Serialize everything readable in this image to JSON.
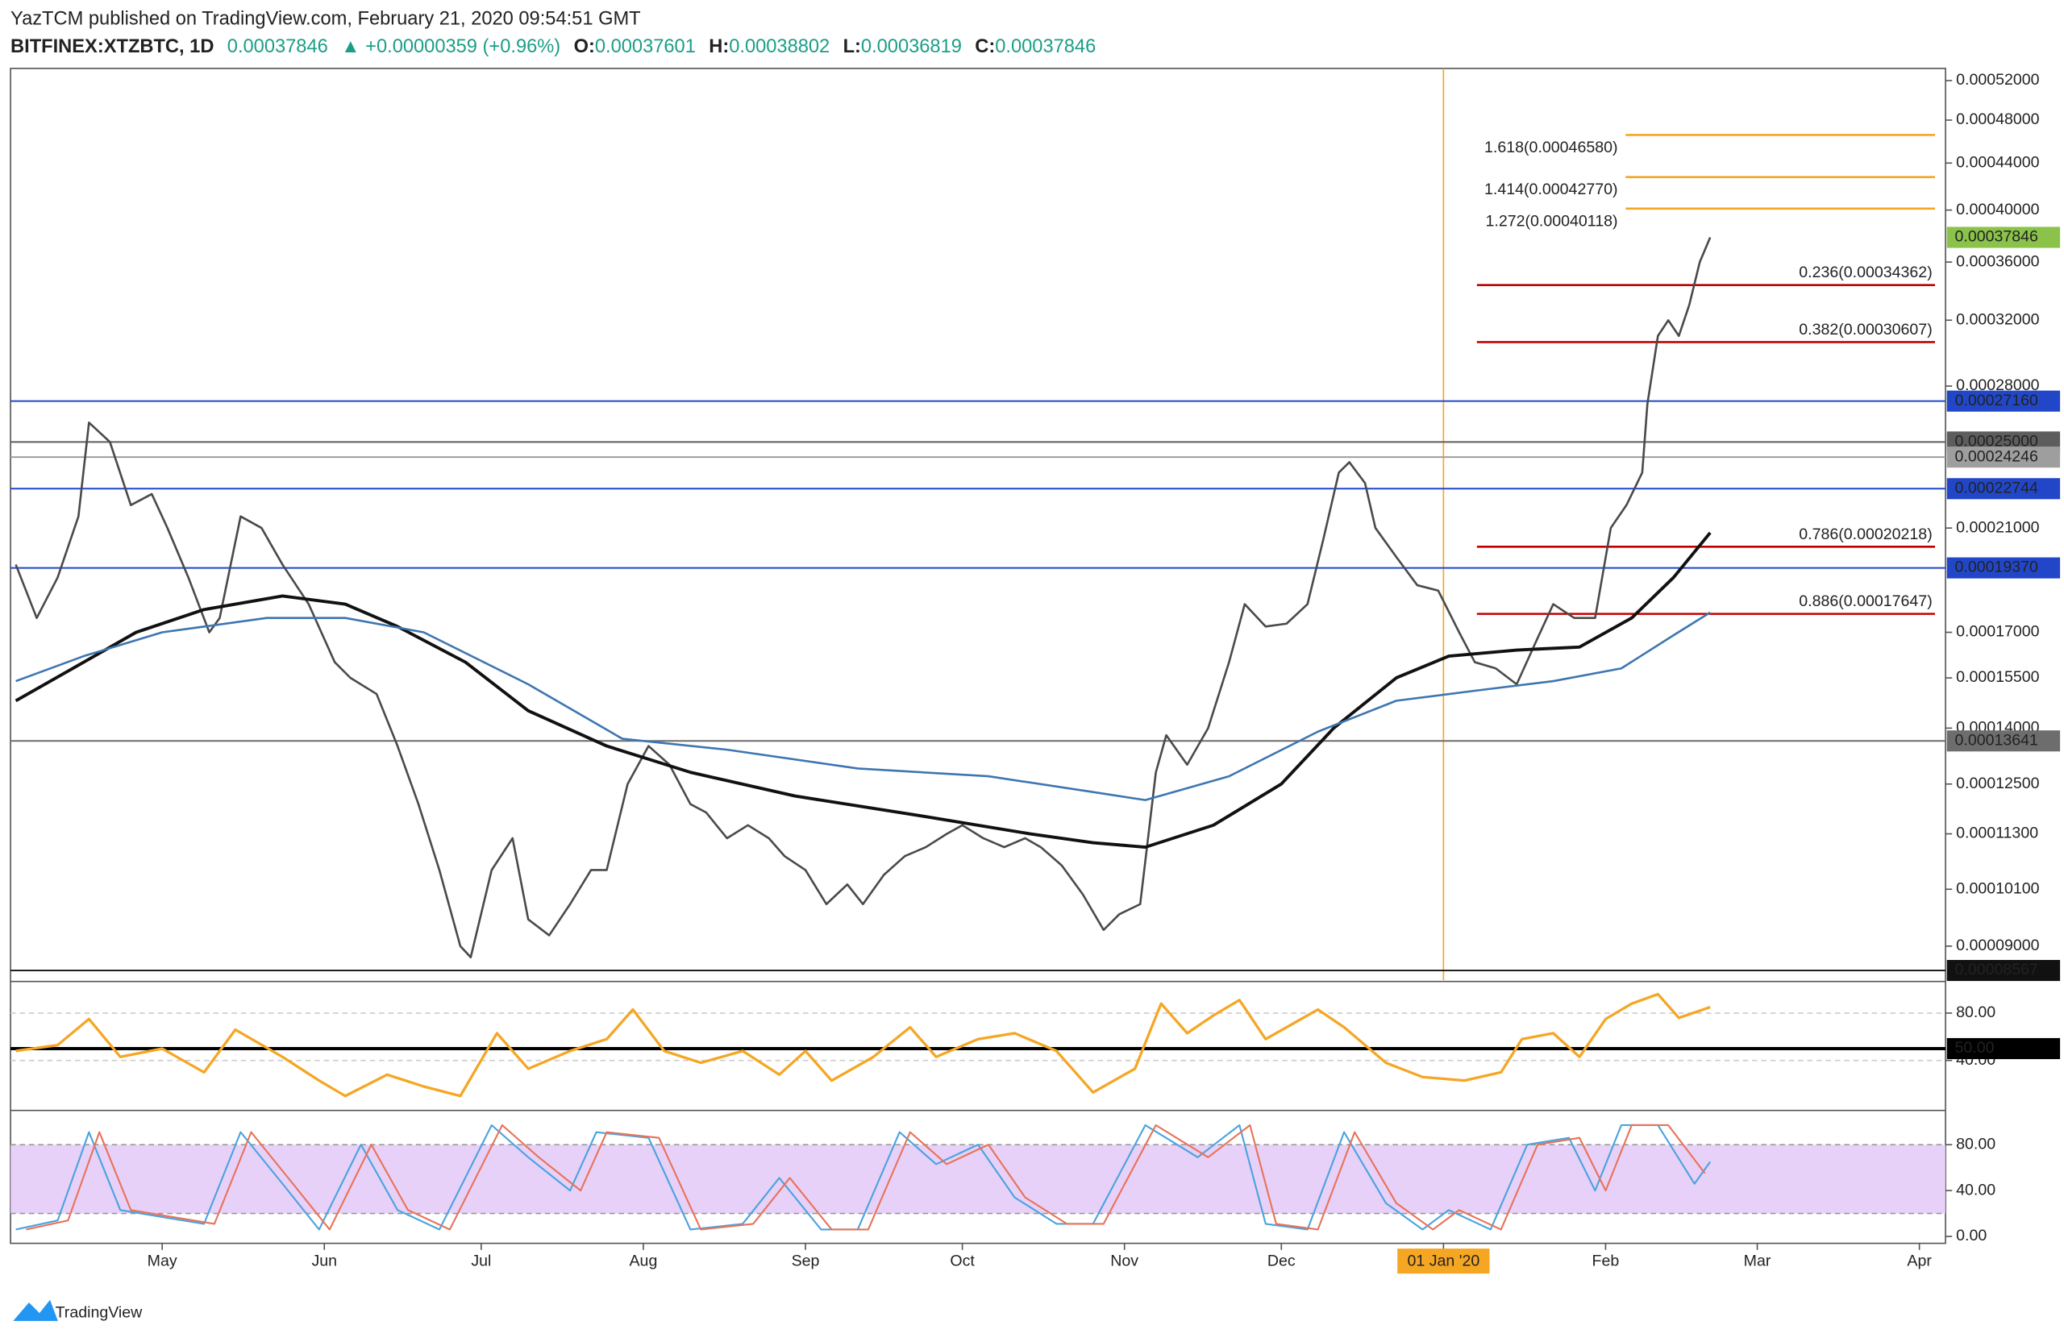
{
  "header": {
    "author_line": "YazTCM published on TradingView.com, February 21, 2020 09:54:51 GMT",
    "symbol": "BITFINEX:XTZBTC, 1D",
    "last": "0.00037846",
    "change": "▲ +0.00000359 (+0.96%)",
    "ohlc": [
      [
        "O:",
        "0.00037601"
      ],
      [
        "H:",
        "0.00038802"
      ],
      [
        "L:",
        "0.00036819"
      ],
      [
        "C:",
        "0.00037846"
      ]
    ]
  },
  "footer": {
    "logo": "TradingView"
  },
  "chart_data": [
    {
      "type": "line",
      "log": true,
      "xlim": [
        -274,
        96
      ],
      "ylim": [
        8.4e-05,
        0.000533
      ],
      "xticks": [
        {
          "value": -245,
          "label": "May"
        },
        {
          "value": -214,
          "label": "Jun"
        },
        {
          "value": -184,
          "label": "Jul"
        },
        {
          "value": -153,
          "label": "Aug"
        },
        {
          "value": -122,
          "label": "Sep"
        },
        {
          "value": -92,
          "label": "Oct"
        },
        {
          "value": -61,
          "label": "Nov"
        },
        {
          "value": -31,
          "label": "Dec"
        },
        {
          "value": 0,
          "label": "01 Jan '20"
        },
        {
          "value": 31,
          "label": "Feb"
        },
        {
          "value": 60,
          "label": "Mar"
        },
        {
          "value": 91,
          "label": "Apr"
        }
      ],
      "vline": {
        "value": 0,
        "color": "#f5a623"
      },
      "yticks": [
        {
          "value": 0.00052,
          "label": "0.00052000"
        },
        {
          "value": 0.00048,
          "label": "0.00048000"
        },
        {
          "value": 0.00044,
          "label": "0.00044000"
        },
        {
          "value": 0.0004,
          "label": "0.00040000"
        },
        {
          "value": 0.00036,
          "label": "0.00036000"
        },
        {
          "value": 0.00032,
          "label": "0.00032000"
        },
        {
          "value": 0.00028,
          "label": "0.00028000"
        },
        {
          "value": 0.00021,
          "label": "0.00021000"
        },
        {
          "value": 0.00017,
          "label": "0.00017000"
        },
        {
          "value": 0.000155,
          "label": "0.00015500"
        },
        {
          "value": 0.00014,
          "label": "0.00014000"
        },
        {
          "value": 0.000125,
          "label": "0.00012500"
        },
        {
          "value": 0.000113,
          "label": "0.00011300"
        },
        {
          "value": 0.000101,
          "label": "0.00010100"
        },
        {
          "value": 9e-05,
          "label": "0.00009000"
        }
      ],
      "series": [
        {
          "color": "#4a4a4a",
          "width": 1.6,
          "x": [
            -273,
            -269,
            -265,
            -261,
            -259,
            -255,
            -251,
            -247,
            -244,
            -240,
            -236,
            -234,
            -230,
            -226,
            -222,
            -217,
            -212,
            -209,
            -204,
            -200,
            -196,
            -192,
            -188,
            -186,
            -182,
            -178,
            -175,
            -171,
            -167,
            -163,
            -160,
            -156,
            -152,
            -148,
            -144,
            -141,
            -137,
            -133,
            -129,
            -126,
            -122,
            -118,
            -114,
            -111,
            -107,
            -103,
            -99,
            -95,
            -92,
            -88,
            -84,
            -80,
            -77,
            -73,
            -69,
            -65,
            -62,
            -58,
            -55,
            -53,
            -49,
            -45,
            -41,
            -38,
            -34,
            -30,
            -26,
            -23,
            -20,
            -18,
            -15,
            -13,
            -9,
            -5,
            -1,
            3,
            6,
            10,
            14,
            18,
            21,
            25,
            29,
            32,
            35,
            38,
            39,
            41,
            43,
            45,
            47,
            49,
            51
          ],
          "values": [
            0.000195,
            0.000175,
            0.00019,
            0.000215,
            0.00026,
            0.00025,
            0.00022,
            0.000225,
            0.00021,
            0.00019,
            0.00017,
            0.000175,
            0.000215,
            0.00021,
            0.000195,
            0.00018,
            0.00016,
            0.000155,
            0.00015,
            0.000135,
            0.00012,
            0.000105,
            9e-05,
            8.8e-05,
            0.000105,
            0.000112,
            9.5e-05,
            9.2e-05,
            9.8e-05,
            0.000105,
            0.000105,
            0.000125,
            0.000135,
            0.00013,
            0.00012,
            0.000118,
            0.000112,
            0.000115,
            0.000112,
            0.000108,
            0.000105,
            9.8e-05,
            0.000102,
            9.8e-05,
            0.000104,
            0.000108,
            0.00011,
            0.000113,
            0.000115,
            0.000112,
            0.00011,
            0.000112,
            0.00011,
            0.000106,
            0.0001,
            9.3e-05,
            9.6e-05,
            9.8e-05,
            0.000128,
            0.000138,
            0.00013,
            0.00014,
            0.00016,
            0.00018,
            0.000172,
            0.000173,
            0.00018,
            0.000205,
            0.000235,
            0.00024,
            0.00023,
            0.00021,
            0.000198,
            0.000187,
            0.000185,
            0.00017,
            0.00016,
            0.000158,
            0.000153,
            0.000168,
            0.00018,
            0.000175,
            0.000175,
            0.00021,
            0.00022,
            0.000235,
            0.00027,
            0.00031,
            0.00032,
            0.00031,
            0.00033,
            0.00036,
            0.00037846
          ]
        },
        {
          "color": "#111111",
          "width": 2.4,
          "x": [
            -273,
            -260,
            -250,
            -237,
            -222,
            -210,
            -200,
            -187,
            -175,
            -160,
            -144,
            -124,
            -99,
            -79,
            -67,
            -57,
            -44,
            -31,
            -21,
            -9,
            1,
            14,
            26,
            36,
            44,
            51
          ],
          "values": [
            0.000148,
            0.00016,
            0.00017,
            0.000178,
            0.000183,
            0.00018,
            0.000172,
            0.00016,
            0.000145,
            0.000135,
            0.000128,
            0.000122,
            0.000117,
            0.000113,
            0.000111,
            0.00011,
            0.000115,
            0.000125,
            0.00014,
            0.000155,
            0.000162,
            0.000164,
            0.000165,
            0.000175,
            0.00019,
            0.000208
          ]
        },
        {
          "color": "#3d76b0",
          "width": 1.6,
          "x": [
            -273,
            -260,
            -245,
            -225,
            -210,
            -195,
            -175,
            -157,
            -137,
            -112,
            -87,
            -67,
            -57,
            -41,
            -24,
            -9,
            6,
            21,
            34,
            44,
            51
          ],
          "values": [
            0.000154,
            0.000162,
            0.00017,
            0.000175,
            0.000175,
            0.00017,
            0.000153,
            0.000137,
            0.000134,
            0.000129,
            0.000127,
            0.000123,
            0.000121,
            0.000127,
            0.000139,
            0.000148,
            0.000151,
            0.000154,
            0.000158,
            0.000169,
            0.000177
          ]
        }
      ],
      "levels": [
        {
          "value": 0.0002716,
          "label": "0.00027160",
          "color": "#2147c8"
        },
        {
          "value": 0.00025,
          "label": "0.00025000",
          "color": "#5d5d5d"
        },
        {
          "value": 0.00024246,
          "label": "0.00024246",
          "color": "#9e9e9e"
        },
        {
          "value": 0.00022744,
          "label": "0.00022744",
          "color": "#2147c8"
        },
        {
          "value": 0.0001937,
          "label": "0.00019370",
          "color": "#2147c8"
        },
        {
          "value": 0.00013641,
          "label": "0.00013641",
          "color": "#6d6d6d"
        },
        {
          "value": 8.567e-05,
          "label": "0.00008567",
          "color": "#111111"
        }
      ],
      "fib": [
        {
          "value": 0.0004658,
          "label": "1.618(0.00046580)",
          "color": "#f5a623"
        },
        {
          "value": 0.0004277,
          "label": "1.414(0.00042770)",
          "color": "#f5a623"
        },
        {
          "value": 0.00040118,
          "label": "1.272(0.00040118)",
          "color": "#f5a623"
        },
        {
          "value": 0.00034362,
          "label": "0.236(0.00034362)",
          "color": "#c00000"
        },
        {
          "value": 0.00030607,
          "label": "0.382(0.00030607)",
          "color": "#c00000"
        },
        {
          "value": 0.00020218,
          "label": "0.786(0.00020218)",
          "color": "#c00000"
        },
        {
          "value": 0.00017647,
          "label": "0.886(0.00017647)",
          "color": "#c00000"
        }
      ],
      "last_price": {
        "value": 0.00037846,
        "label": "0.00037846",
        "color": "#8bc34a"
      }
    },
    {
      "type": "line",
      "xlim": [
        -274,
        96
      ],
      "ylim": [
        0,
        100
      ],
      "yticks": [
        {
          "value": 80,
          "label": "80.00"
        },
        {
          "value": 40,
          "label": "40.00"
        }
      ],
      "midline": {
        "value": 50,
        "label": "50.00"
      },
      "series": [
        {
          "color": "#f5a623",
          "width": 2,
          "x": [
            -273,
            -265,
            -259,
            -253,
            -245,
            -237,
            -231,
            -222,
            -215,
            -210,
            -202,
            -195,
            -188,
            -181,
            -175,
            -167,
            -160,
            -155,
            -149,
            -142,
            -134,
            -127,
            -122,
            -117,
            -109,
            -102,
            -97,
            -89,
            -82,
            -74,
            -67,
            -59,
            -54,
            -49,
            -44,
            -39,
            -34,
            -26,
            -24,
            -19,
            -11,
            -4,
            4,
            11,
            15,
            21,
            26,
            31,
            36,
            41,
            45,
            51
          ],
          "values": [
            48,
            53,
            75,
            43,
            50,
            30,
            66,
            43,
            23,
            10,
            28,
            18,
            10,
            63,
            33,
            48,
            58,
            83,
            48,
            38,
            48,
            28,
            48,
            23,
            43,
            68,
            43,
            58,
            63,
            48,
            13,
            33,
            88,
            63,
            78,
            91,
            58,
            78,
            83,
            68,
            38,
            26,
            23,
            30,
            58,
            63,
            43,
            75,
            88,
            96,
            76,
            85
          ]
        }
      ]
    },
    {
      "type": "line",
      "xlim": [
        -274,
        96
      ],
      "ylim": [
        -6,
        103
      ],
      "yticks": [
        {
          "value": 80,
          "label": "80.00"
        },
        {
          "value": 40,
          "label": "40.00"
        },
        {
          "value": 0,
          "label": "0.00"
        }
      ],
      "band": [
        20,
        80
      ],
      "band_color": "#e3c9f7",
      "series": [
        {
          "color": "#4aa3df",
          "width": 1.3,
          "x": [
            -273,
            -265,
            -259,
            -253,
            -245,
            -237,
            -230,
            -222,
            -215,
            -207,
            -200,
            -192,
            -182,
            -175,
            -167,
            -162,
            -152,
            -144,
            -134,
            -127,
            -119,
            -112,
            -104,
            -97,
            -89,
            -82,
            -74,
            -67,
            -57,
            -47,
            -39,
            -34,
            -26,
            -19,
            -11,
            -4,
            1,
            9,
            16,
            24,
            29,
            34,
            41,
            48,
            51
          ],
          "values": [
            6,
            14,
            91,
            23,
            17,
            11,
            91,
            46,
            6,
            80,
            23,
            6,
            97,
            69,
            40,
            91,
            86,
            6,
            11,
            51,
            6,
            6,
            91,
            63,
            80,
            34,
            11,
            11,
            97,
            69,
            97,
            11,
            6,
            91,
            29,
            6,
            23,
            6,
            80,
            86,
            40,
            97,
            97,
            46,
            65
          ]
        },
        {
          "color": "#e8735a",
          "width": 1.3,
          "x": [
            -271,
            -263,
            -257,
            -251,
            -243,
            -235,
            -228,
            -220,
            -213,
            -205,
            -198,
            -190,
            -180,
            -173,
            -165,
            -160,
            -150,
            -142,
            -132,
            -125,
            -117,
            -110,
            -102,
            -95,
            -87,
            -80,
            -72,
            -65,
            -55,
            -45,
            -37,
            -32,
            -24,
            -17,
            -9,
            -2,
            3,
            11,
            18,
            26,
            31,
            36,
            43,
            50
          ],
          "values": [
            6,
            14,
            91,
            23,
            17,
            11,
            91,
            46,
            6,
            80,
            23,
            6,
            97,
            69,
            40,
            91,
            86,
            6,
            11,
            51,
            6,
            6,
            91,
            63,
            80,
            34,
            11,
            11,
            97,
            69,
            97,
            11,
            6,
            91,
            29,
            6,
            23,
            6,
            80,
            86,
            40,
            97,
            97,
            55
          ]
        }
      ]
    }
  ]
}
